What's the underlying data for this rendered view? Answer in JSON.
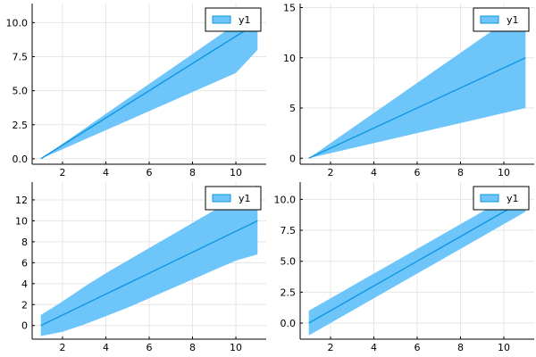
{
  "colors": {
    "band": "#6ec5fa",
    "line": "#0f97e1",
    "grid": "#e6e6e6",
    "axis": "#000000",
    "background": "#ffffff"
  },
  "chart_data": [
    {
      "type": "line",
      "x": [
        1,
        2,
        3,
        4,
        5,
        6,
        7,
        8,
        9,
        10,
        11
      ],
      "series": [
        {
          "name": "y1",
          "values": [
            0,
            1,
            2,
            3,
            4,
            5,
            6,
            7,
            8,
            9,
            10
          ],
          "lower": [
            0,
            0.7,
            1.4,
            2.1,
            2.8,
            3.5,
            4.2,
            4.9,
            5.6,
            6.3,
            8.0
          ],
          "upper": [
            0,
            1.1,
            2.2,
            3.3,
            4.4,
            5.5,
            6.6,
            7.7,
            8.8,
            9.9,
            11.0
          ]
        }
      ],
      "xlim": [
        0.6,
        11.4
      ],
      "ylim": [
        -0.4,
        11.4
      ],
      "xticks": [
        2,
        4,
        6,
        8,
        10
      ],
      "yticks": [
        0,
        2.5,
        5,
        7.5,
        10
      ],
      "ytick_labels": [
        "0.0",
        "2.5",
        "5.0",
        "7.5",
        "10.0"
      ],
      "grid": true,
      "legend": {
        "labels": [
          "y1"
        ],
        "position": "top-right"
      }
    },
    {
      "type": "line",
      "x": [
        1,
        2,
        3,
        4,
        5,
        6,
        7,
        8,
        9,
        10,
        11
      ],
      "series": [
        {
          "name": "y1",
          "values": [
            0,
            1,
            2,
            3,
            4,
            5,
            6,
            7,
            8,
            9,
            10
          ],
          "lower": [
            0,
            0.5,
            1.0,
            1.5,
            2.0,
            2.5,
            3.0,
            3.5,
            4.0,
            4.5,
            5.0
          ],
          "upper": [
            0,
            1.5,
            3.0,
            4.5,
            6.0,
            7.5,
            9.0,
            10.5,
            12.0,
            13.5,
            15.0
          ]
        }
      ],
      "xlim": [
        0.6,
        11.4
      ],
      "ylim": [
        -0.6,
        15.4
      ],
      "xticks": [
        2,
        4,
        6,
        8,
        10
      ],
      "yticks": [
        0,
        5,
        10,
        15
      ],
      "ytick_labels": [
        "0",
        "5",
        "10",
        "15"
      ],
      "grid": true,
      "legend": {
        "labels": [
          "y1"
        ],
        "position": "top-right"
      }
    },
    {
      "type": "line",
      "x": [
        1,
        2,
        3,
        4,
        5,
        6,
        7,
        8,
        9,
        10,
        11
      ],
      "series": [
        {
          "name": "y1",
          "values": [
            0,
            1,
            2,
            3,
            4,
            5,
            6,
            7,
            8,
            9,
            10
          ],
          "lower": [
            -1.0,
            -0.6,
            0.1,
            0.9,
            1.7,
            2.6,
            3.5,
            4.4,
            5.3,
            6.2,
            6.8
          ],
          "upper": [
            1.0,
            2.3,
            3.7,
            5.0,
            6.2,
            7.4,
            8.6,
            9.8,
            11.0,
            12.2,
            13.4
          ]
        }
      ],
      "xlim": [
        0.6,
        11.4
      ],
      "ylim": [
        -1.3,
        13.7
      ],
      "xticks": [
        2,
        4,
        6,
        8,
        10
      ],
      "yticks": [
        0,
        2,
        4,
        6,
        8,
        10,
        12
      ],
      "ytick_labels": [
        "0",
        "2",
        "4",
        "6",
        "8",
        "10",
        "12"
      ],
      "grid": true,
      "legend": {
        "labels": [
          "y1"
        ],
        "position": "top-right"
      }
    },
    {
      "type": "line",
      "x": [
        1,
        2,
        3,
        4,
        5,
        6,
        7,
        8,
        9,
        10,
        11
      ],
      "series": [
        {
          "name": "y1",
          "values": [
            0,
            1,
            2,
            3,
            4,
            5,
            6,
            7,
            8,
            9,
            10
          ],
          "lower": [
            -1.0,
            0,
            1.0,
            2.0,
            3.0,
            4.0,
            5.0,
            6.0,
            7.0,
            8.0,
            9.0
          ],
          "upper": [
            1.0,
            2.0,
            3.0,
            4.0,
            5.0,
            6.0,
            7.0,
            8.0,
            9.0,
            10.0,
            11.0
          ]
        }
      ],
      "xlim": [
        0.6,
        11.4
      ],
      "ylim": [
        -1.3,
        11.4
      ],
      "xticks": [
        2,
        4,
        6,
        8,
        10
      ],
      "yticks": [
        0,
        2.5,
        5,
        7.5,
        10
      ],
      "ytick_labels": [
        "0.0",
        "2.5",
        "5.0",
        "7.5",
        "10.0"
      ],
      "grid": true,
      "legend": {
        "labels": [
          "y1"
        ],
        "position": "top-right"
      }
    }
  ]
}
